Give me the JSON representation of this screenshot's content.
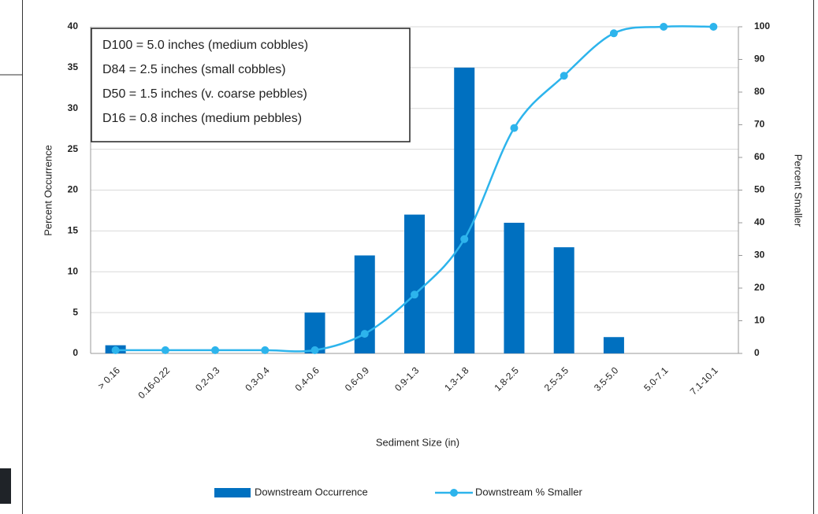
{
  "chart_data": {
    "type": "bar",
    "categories": [
      "> 0.16",
      "0.16-0.22",
      "0.2-0.3",
      "0.3-0.4",
      "0.4-0.6",
      "0.6-0.9",
      "0.9-1.3",
      "1.3-1.8",
      "1.8-2.5",
      "2.5-3.5",
      "3.5-5.0",
      "5.0-7.1",
      "7.1-10.1"
    ],
    "series": [
      {
        "name": "Downstream Occurrence",
        "type": "bar",
        "color": "#0070c0",
        "values": [
          1,
          0,
          0,
          0,
          5,
          12,
          17,
          35,
          16,
          13,
          2,
          0,
          0
        ]
      },
      {
        "name": "Downstream % Smaller",
        "type": "line",
        "axis": "y2",
        "color": "#2db4ec",
        "values": [
          1,
          1,
          1,
          1,
          1,
          6,
          18,
          35,
          69,
          85,
          98,
          100,
          100
        ]
      }
    ],
    "xlabel": "Sediment Size (in)",
    "ylabel": "Percent Occurrence",
    "y2label": "Percent Smaller",
    "ylim": [
      0,
      40
    ],
    "yticks": [
      0,
      5,
      10,
      15,
      20,
      25,
      30,
      35,
      40
    ],
    "y2lim": [
      0,
      100
    ],
    "y2ticks": [
      0,
      10,
      20,
      30,
      40,
      50,
      60,
      70,
      80,
      90,
      100
    ],
    "grid": true,
    "legend": "bottom",
    "annotations": [
      "D100 = 5.0 inches (medium cobbles)",
      "D84 = 2.5 inches (small cobbles)",
      "D50 = 1.5 inches (v. coarse pebbles)",
      "D16 = 0.8 inches (medium pebbles)"
    ]
  }
}
